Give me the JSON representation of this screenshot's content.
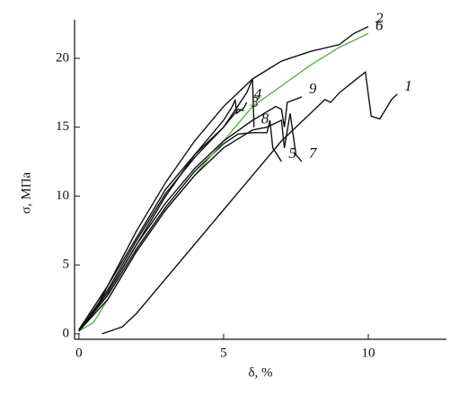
{
  "chart_data": {
    "type": "line",
    "x_label": "δ, %",
    "y_label": "σ, МПа",
    "xlim": [
      -0.15,
      12.7
    ],
    "ylim": [
      -0.4,
      22.8
    ],
    "xticks": [
      0,
      5,
      10
    ],
    "yticks": [
      0,
      5,
      10,
      15,
      20
    ],
    "series": [
      {
        "name": "1",
        "color": "#111111",
        "x": [
          0.8,
          1.5,
          2,
          3,
          4,
          5,
          6,
          7,
          8,
          8.5,
          8.7,
          9,
          9.6,
          9.9,
          10.1,
          10.4,
          10.8,
          11
        ],
        "values": [
          0,
          0.5,
          1.5,
          4,
          6.5,
          9,
          11.5,
          14,
          16,
          17,
          16.8,
          17.5,
          18.5,
          19,
          15.8,
          15.6,
          17,
          17.4
        ]
      },
      {
        "name": "2",
        "color": "#111111",
        "x": [
          0,
          0.5,
          1,
          2,
          3,
          4,
          5,
          6,
          7,
          8,
          9,
          9.5,
          10
        ],
        "values": [
          0.3,
          1.5,
          3.5,
          7.5,
          11,
          14,
          16.5,
          18.5,
          19.8,
          20.5,
          21,
          21.8,
          22.3
        ]
      },
      {
        "name": "3",
        "color": "#111111",
        "x": [
          0,
          1,
          2,
          3,
          4,
          5,
          5.5,
          5.7
        ],
        "values": [
          0.3,
          3.5,
          7,
          10.5,
          13,
          15,
          16.3,
          16.2
        ]
      },
      {
        "name": "4",
        "color": "#111111",
        "x": [
          0,
          1,
          2,
          3,
          4,
          5,
          5.3,
          5.4,
          5.45,
          5.7,
          5.8
        ],
        "values": [
          0.2,
          3,
          6.5,
          10,
          13,
          15.5,
          16.5,
          17,
          16,
          16.4,
          16.8
        ]
      },
      {
        "name": "5",
        "color": "#111111",
        "x": [
          0,
          1,
          2,
          3,
          4,
          5,
          5.5,
          6,
          6.5,
          6.6,
          6.7,
          7
        ],
        "values": [
          0.2,
          2.8,
          6.2,
          9.2,
          11.8,
          13.8,
          14.5,
          14.6,
          14.6,
          15.5,
          13.5,
          12.5
        ]
      },
      {
        "name": "6",
        "color": "#6aaa5a",
        "x": [
          0,
          0.5,
          1,
          2,
          3,
          4,
          5,
          6,
          7,
          8,
          9,
          10
        ],
        "values": [
          0.2,
          0.8,
          2.5,
          6,
          9,
          11.5,
          14,
          16.5,
          18,
          19.5,
          20.8,
          21.8
        ]
      },
      {
        "name": "7",
        "color": "#111111",
        "x": [
          0,
          1,
          2,
          3,
          4,
          5,
          6,
          6.5,
          7,
          7.1,
          7.3,
          7.5,
          7.7
        ],
        "values": [
          0.2,
          2.5,
          6,
          9,
          11.5,
          13.5,
          14.8,
          15,
          15.5,
          13.5,
          16,
          13,
          12.5
        ]
      },
      {
        "name": "8",
        "color": "#111111",
        "x": [
          0,
          1,
          2,
          3,
          4,
          5,
          5.8,
          6,
          6.05
        ],
        "values": [
          0.2,
          3.2,
          6.8,
          10.2,
          12.8,
          15,
          17.5,
          18.5,
          15
        ]
      },
      {
        "name": "9",
        "color": "#111111",
        "x": [
          0,
          1,
          2,
          3,
          4,
          5,
          6,
          6.8,
          7,
          7.1,
          7.2,
          7.7
        ],
        "values": [
          0.2,
          3,
          6.5,
          9.5,
          12,
          14,
          15.5,
          16.5,
          16.3,
          15,
          16.8,
          17.2
        ]
      }
    ]
  }
}
